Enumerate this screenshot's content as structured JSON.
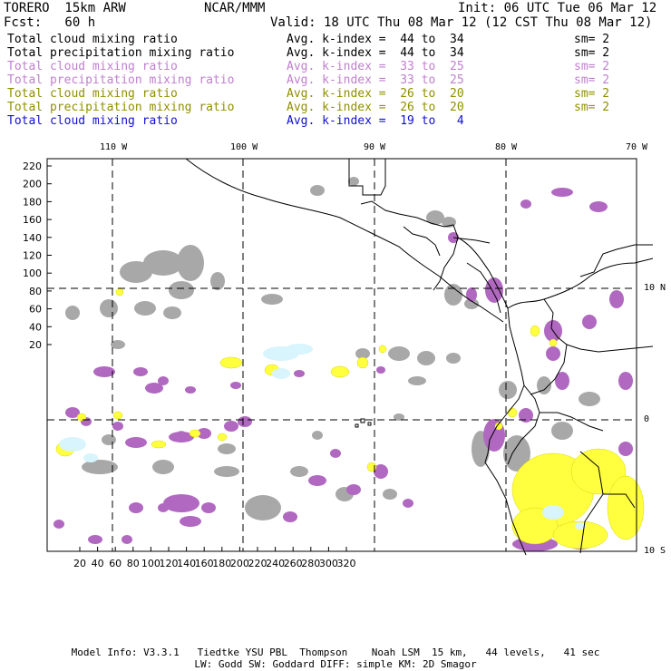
{
  "header": {
    "model": "TORERO  15km ARW",
    "center": "NCAR/MMM",
    "init": "Init: 06 UTC Tue 06 Mar 12",
    "fcst": "Fcst:   60 h",
    "valid": "Valid: 18 UTC Thu 08 Mar 12 (12 CST Thu 08 Mar 12)"
  },
  "legend": [
    {
      "field": "Total cloud mixing ratio",
      "kindex": "Avg. k-index =  44 to  34",
      "sm": "sm= 2",
      "color": "#000000"
    },
    {
      "field": "Total precipitation mixing ratio",
      "kindex": "Avg. k-index =  44 to  34",
      "sm": "sm= 2",
      "color": "#000000"
    },
    {
      "field": "Total cloud mixing ratio",
      "kindex": "Avg. k-index =  33 to  25",
      "sm": "sm= 2",
      "color": "#c080d0"
    },
    {
      "field": "Total precipitation mixing ratio",
      "kindex": "Avg. k-index =  33 to  25",
      "sm": "sm= 2",
      "color": "#c080d0"
    },
    {
      "field": "Total cloud mixing ratio",
      "kindex": "Avg. k-index =  26 to  20",
      "sm": "sm= 2",
      "color": "#909000"
    },
    {
      "field": "Total precipitation mixing ratio",
      "kindex": "Avg. k-index =  26 to  20",
      "sm": "sm= 2",
      "color": "#909000"
    },
    {
      "field": "Total cloud mixing ratio",
      "kindex": "Avg. k-index =  19 to   4",
      "sm": "",
      "color": "#1010d0"
    }
  ],
  "map": {
    "lon_labels": [
      "110 W",
      "100 W",
      "90 W",
      "80 W",
      "70 W"
    ],
    "lat_labels": [
      "10 N",
      "0",
      "10 S"
    ],
    "y_ticks": [
      "220",
      "200",
      "180",
      "160",
      "140",
      "120",
      "100",
      "80",
      "60",
      "40",
      "20"
    ],
    "x_ticks": [
      "20",
      "40",
      "60",
      "80",
      "100",
      "120",
      "140",
      "160",
      "180",
      "200",
      "220",
      "240",
      "260",
      "280",
      "300",
      "320"
    ],
    "colors": {
      "gray": "#a8a8a8",
      "purple": "#b068c0",
      "yellow": "#ffff40",
      "cyan": "#d8f4fc",
      "coast": "#000000"
    }
  },
  "footer": {
    "line1": "Model Info: V3.3.1   Tiedtke YSU PBL  Thompson    Noah LSM  15 km,   44 levels,   41 sec",
    "line2": "LW: Godd SW: Goddard DIFF: simple KM: 2D Smagor"
  }
}
